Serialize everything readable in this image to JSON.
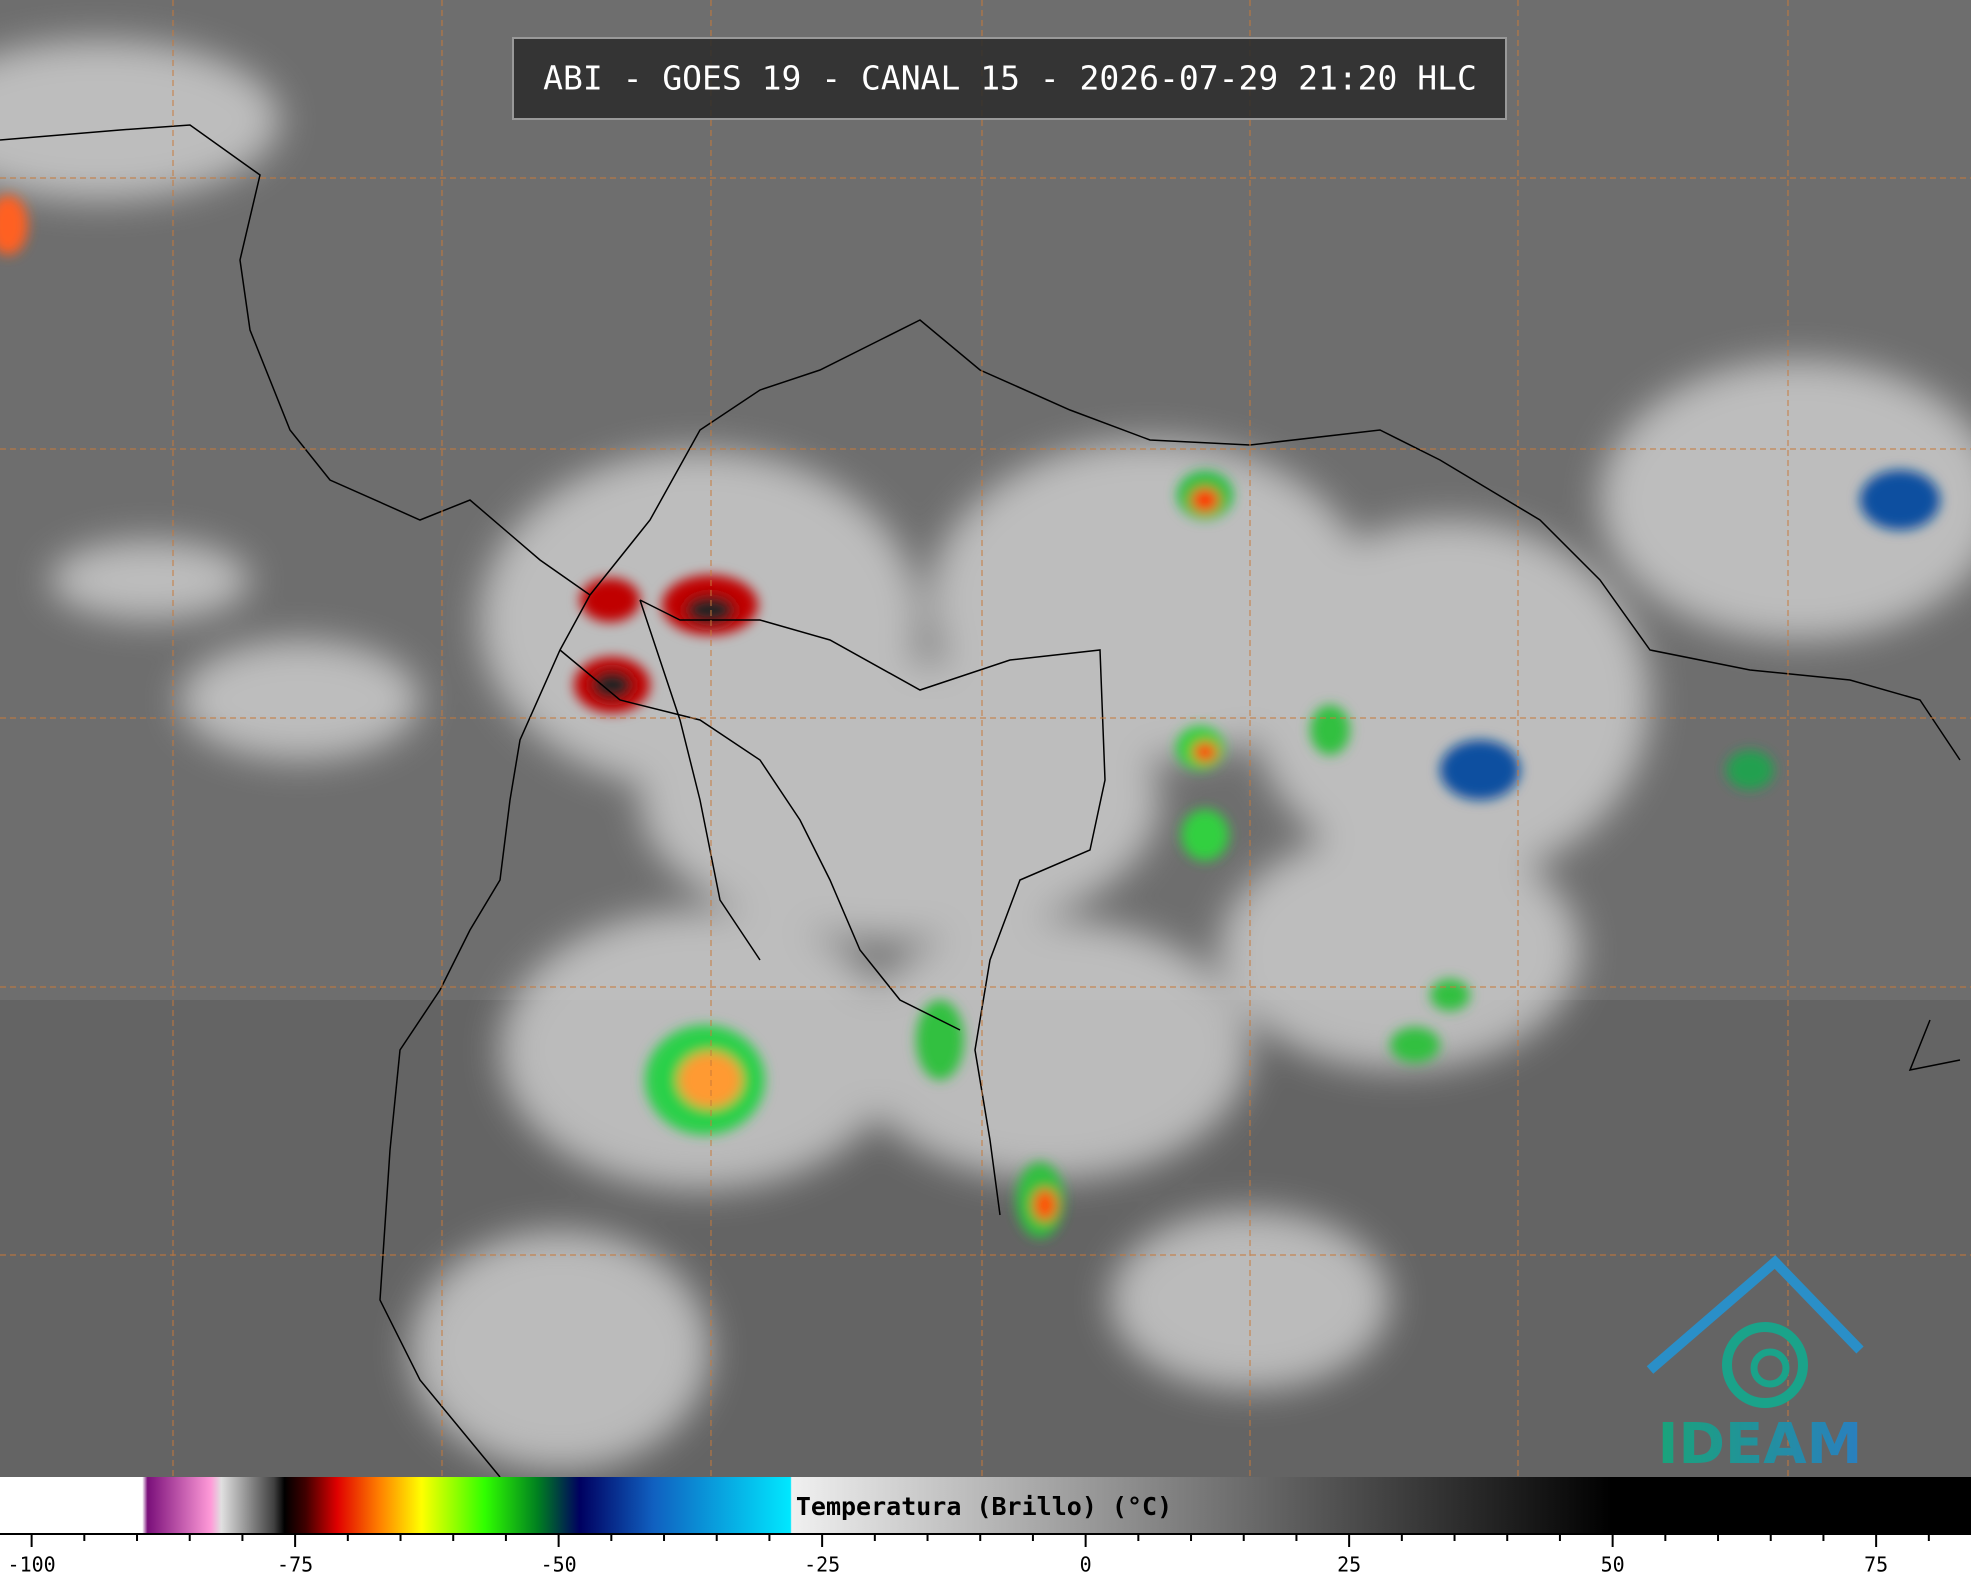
{
  "header": {
    "title": "ABI - GOES 19 - CANAL 15 - 2026-07-29 21:20 HLC"
  },
  "logo": {
    "text": "IDEAM"
  },
  "colorbar": {
    "label": "Temperatura (Brillo) (°C)",
    "xlim": [
      -103,
      84
    ],
    "xticks": [
      -100,
      -75,
      -50,
      -25,
      0,
      25,
      50,
      75
    ],
    "minor_xticks": [
      -95,
      -90,
      -85,
      -80,
      -70,
      -65,
      -60,
      -55,
      -45,
      -40,
      -35,
      -30,
      -20,
      -15,
      -10,
      -5,
      5,
      10,
      15,
      20,
      30,
      35,
      40,
      45,
      55,
      60,
      65,
      70,
      80
    ],
    "colormap": [
      {
        "value": -103,
        "color": "#ffffff"
      },
      {
        "value": -89.5,
        "color": "#ffffff"
      },
      {
        "value": -89,
        "color": "#7a0f7a"
      },
      {
        "value": -83,
        "color": "#ff9ad8"
      },
      {
        "value": -82,
        "color": "#e0e0e0"
      },
      {
        "value": -77,
        "color": "#404040"
      },
      {
        "value": -76,
        "color": "#000000"
      },
      {
        "value": -74,
        "color": "#400000"
      },
      {
        "value": -71,
        "color": "#e00000"
      },
      {
        "value": -67,
        "color": "#ff8000"
      },
      {
        "value": -63,
        "color": "#ffff00"
      },
      {
        "value": -57,
        "color": "#30ff00"
      },
      {
        "value": -52,
        "color": "#008020"
      },
      {
        "value": -48,
        "color": "#000060"
      },
      {
        "value": -41,
        "color": "#1060c0"
      },
      {
        "value": -28,
        "color": "#00e8ff"
      },
      {
        "value": -27.9,
        "color": "#f0f0f0"
      },
      {
        "value": 50,
        "color": "#000000"
      },
      {
        "value": 84,
        "color": "#000000"
      }
    ]
  }
}
